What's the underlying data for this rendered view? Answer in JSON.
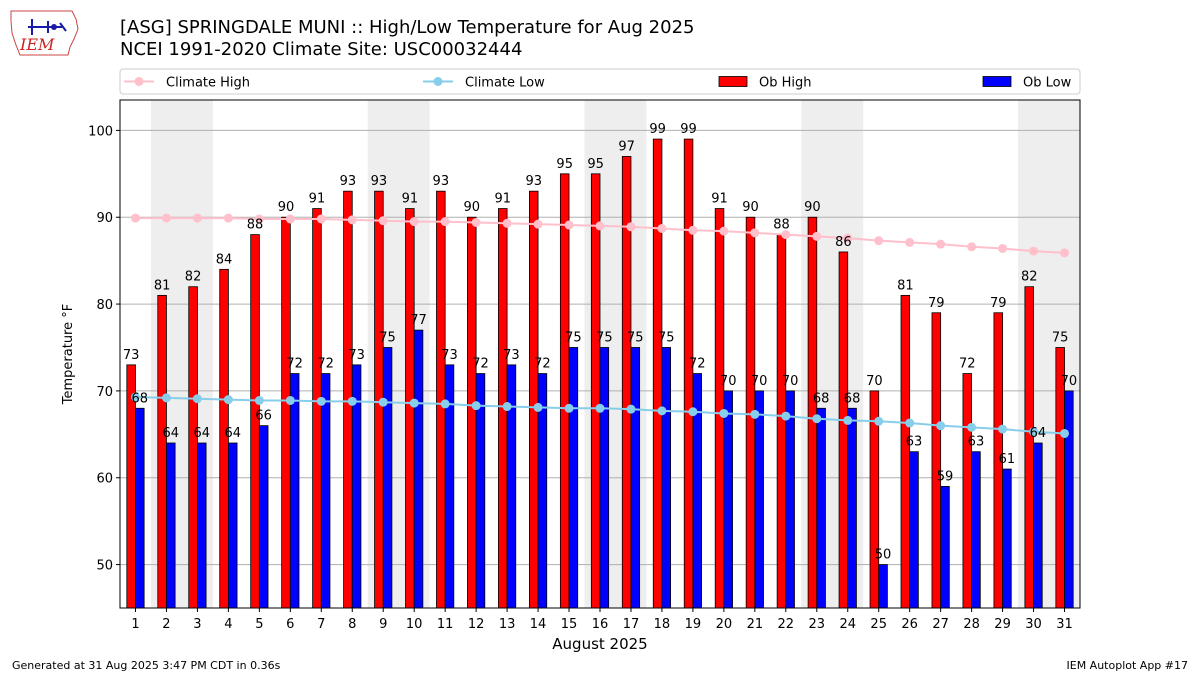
{
  "header": {
    "title_line1": "[ASG] SPRINGDALE MUNI :: High/Low Temperature for Aug 2025",
    "title_line2": "NCEI 1991-2020 Climate Site: USC00032444",
    "logo_text": "IEM"
  },
  "footer": {
    "generated": "Generated at 31 Aug 2025 3:47 PM CDT in 0.36s",
    "app": "IEM Autoplot App #17"
  },
  "colors": {
    "ob_high": "#ff0000",
    "ob_low": "#0000ff",
    "climate_high": "#ffc0cb",
    "climate_low": "#87ceeb",
    "weekend_band": "#eeeeee",
    "grid": "#b0b0b0"
  },
  "chart_data": {
    "type": "bar",
    "xlabel": "August 2025",
    "ylabel": "Temperature °F",
    "ylim": [
      45,
      103.5
    ],
    "yticks": [
      50,
      60,
      70,
      80,
      90,
      100
    ],
    "grid": "horizontal",
    "legend_position": "top",
    "categories": [
      "1",
      "2",
      "3",
      "4",
      "5",
      "6",
      "7",
      "8",
      "9",
      "10",
      "11",
      "12",
      "13",
      "14",
      "15",
      "16",
      "17",
      "18",
      "19",
      "20",
      "21",
      "22",
      "23",
      "24",
      "25",
      "26",
      "27",
      "28",
      "29",
      "30",
      "31"
    ],
    "weekend_bands": [
      [
        "2",
        "3"
      ],
      [
        "9",
        "10"
      ],
      [
        "16",
        "17"
      ],
      [
        "23",
        "24"
      ],
      [
        "30",
        "31"
      ]
    ],
    "series": [
      {
        "name": "Climate High",
        "type": "line",
        "values": [
          89.9,
          89.9,
          89.9,
          89.9,
          89.8,
          89.8,
          89.8,
          89.7,
          89.6,
          89.5,
          89.5,
          89.4,
          89.3,
          89.2,
          89.1,
          89.0,
          88.9,
          88.7,
          88.5,
          88.4,
          88.2,
          88.0,
          87.8,
          87.6,
          87.3,
          87.1,
          86.9,
          86.6,
          86.4,
          86.1,
          85.9
        ]
      },
      {
        "name": "Climate Low",
        "type": "line",
        "values": [
          69.3,
          69.2,
          69.1,
          69.0,
          68.9,
          68.9,
          68.8,
          68.8,
          68.7,
          68.6,
          68.5,
          68.3,
          68.2,
          68.1,
          68.0,
          68.0,
          67.9,
          67.7,
          67.6,
          67.4,
          67.3,
          67.1,
          66.8,
          66.6,
          66.5,
          66.3,
          66.0,
          65.8,
          65.6,
          65.3,
          65.1
        ]
      },
      {
        "name": "Ob High",
        "type": "bar",
        "values": [
          73,
          81,
          82,
          84,
          88,
          90,
          91,
          93,
          93,
          91,
          93,
          90,
          91,
          93,
          95,
          95,
          97,
          99,
          99,
          91,
          90,
          88,
          90,
          86,
          70,
          81,
          79,
          72,
          79,
          82,
          75
        ]
      },
      {
        "name": "Ob Low",
        "type": "bar",
        "values": [
          68,
          64,
          64,
          64,
          66,
          72,
          72,
          73,
          75,
          77,
          73,
          72,
          73,
          72,
          75,
          75,
          75,
          75,
          72,
          70,
          70,
          70,
          68,
          68,
          50,
          63,
          59,
          63,
          61,
          64,
          70
        ]
      }
    ]
  }
}
